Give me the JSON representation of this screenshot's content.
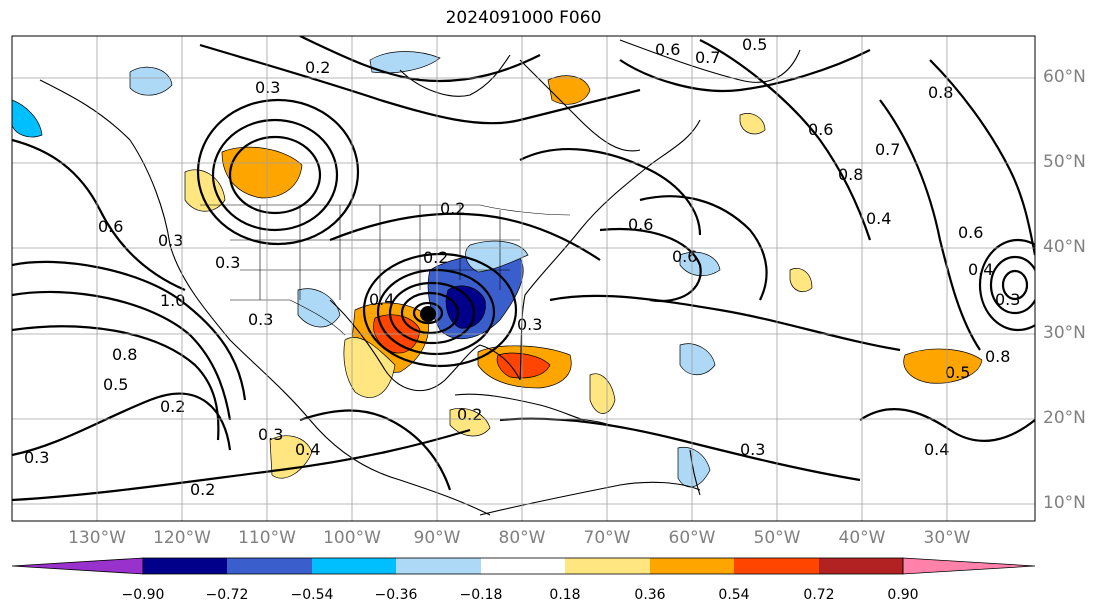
{
  "title": "2024091000 F060",
  "map": {
    "lat_labels": [
      "60°N",
      "50°N",
      "40°N",
      "30°N",
      "20°N",
      "10°N"
    ],
    "lon_labels": [
      "130°W",
      "120°W",
      "110°W",
      "100°W",
      "90°W",
      "80°W",
      "70°W",
      "60°W",
      "50°W",
      "40°W",
      "30°W"
    ],
    "contour_labels": [
      "0.2",
      "0.3",
      "0.6",
      "0.7",
      "0.5",
      "0.8",
      "0.6",
      "0.4",
      "0.8",
      "0.2",
      "0.6",
      "0.3",
      "0.2",
      "0.3",
      "0.4",
      "0.6",
      "1.0",
      "0.8",
      "0.5",
      "0.3",
      "0.2",
      "0.3",
      "0.2",
      "0.3",
      "0.3",
      "0.6",
      "0.7",
      "0.4",
      "0.6",
      "0.4",
      "0.3",
      "0.8",
      "0.5",
      "0.4",
      "0.2",
      "0.3"
    ],
    "colors": {
      "contour": "#000000",
      "coast": "#000000",
      "grid": "#a0a0a0",
      "tick_label": "#808080"
    }
  },
  "colorbar": {
    "ticks": [
      "−0.90",
      "−0.72",
      "−0.54",
      "−0.36",
      "−0.18",
      "0.18",
      "0.36",
      "0.54",
      "0.72",
      "0.90"
    ],
    "colors": [
      "#9932cc",
      "#00008b",
      "#3a5fcd",
      "#00bfff",
      "#add8f6",
      "#ffffff",
      "#ffe680",
      "#ffa500",
      "#ff4500",
      "#b22222",
      "#ff82ab"
    ]
  }
}
